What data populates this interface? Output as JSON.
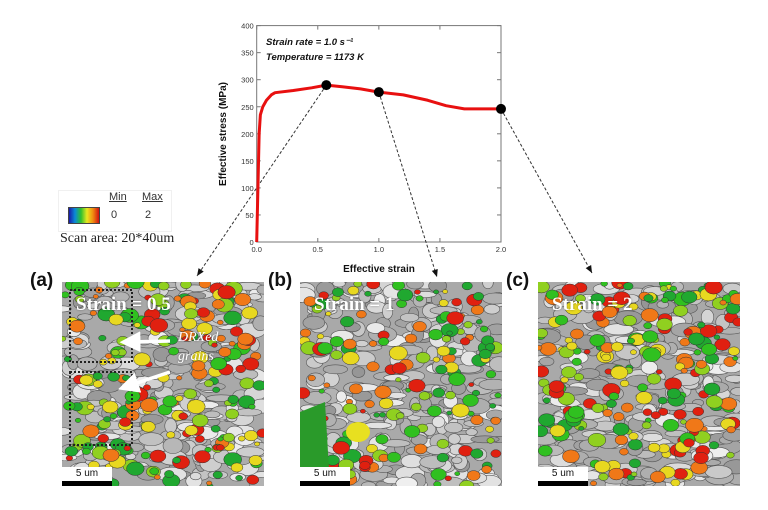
{
  "chart_data": {
    "type": "line",
    "xlabel": "Effective strain",
    "ylabel": "Effective stress (MPa)",
    "xlim": [
      0,
      2.0
    ],
    "ylim": [
      0,
      400
    ],
    "xticks": [
      "0.0",
      "0.5",
      "1.0",
      "1.5",
      "2.0"
    ],
    "yticks": [
      "0",
      "50",
      "100",
      "150",
      "200",
      "250",
      "300",
      "350",
      "400"
    ],
    "annotations": [
      "Strain rate = 1.0 s⁻¹",
      "Temperature = 1173 K"
    ],
    "series": [
      {
        "color": "#e81010",
        "x": [
          0,
          0.01,
          0.02,
          0.03,
          0.05,
          0.08,
          0.12,
          0.15,
          0.3,
          0.45,
          0.57,
          0.7,
          0.85,
          1.0,
          1.2,
          1.4,
          1.55,
          1.7,
          1.85,
          2.0
        ],
        "y": [
          0,
          100,
          200,
          235,
          250,
          262,
          272,
          276,
          280,
          285,
          290,
          287,
          283,
          277,
          272,
          262,
          252,
          246,
          246,
          246
        ]
      }
    ],
    "markers": [
      {
        "x": 0.57,
        "y": 290,
        "panel": "a"
      },
      {
        "x": 1.0,
        "y": 277,
        "panel": "b"
      },
      {
        "x": 2.0,
        "y": 246,
        "panel": "c"
      }
    ],
    "grid": false
  },
  "legend": {
    "min_label": "Min",
    "max_label": "Max",
    "min_value": "0",
    "max_value": "2",
    "scan_area": "Scan area: 20*40um"
  },
  "panels": [
    {
      "label": "(a)",
      "strain": "Strain = 0.5",
      "scale": "5 um",
      "note": "DRXed grains"
    },
    {
      "label": "(b)",
      "strain": "Strain = 1",
      "scale": "5 um"
    },
    {
      "label": "(c)",
      "strain": "Strain = 2",
      "scale": "5 um"
    }
  ],
  "colors": {
    "curve": "#e81010",
    "grain_colors": [
      "#e02010",
      "#f07818",
      "#30c020",
      "#90d020",
      "#e8d820",
      "#20a830"
    ]
  }
}
